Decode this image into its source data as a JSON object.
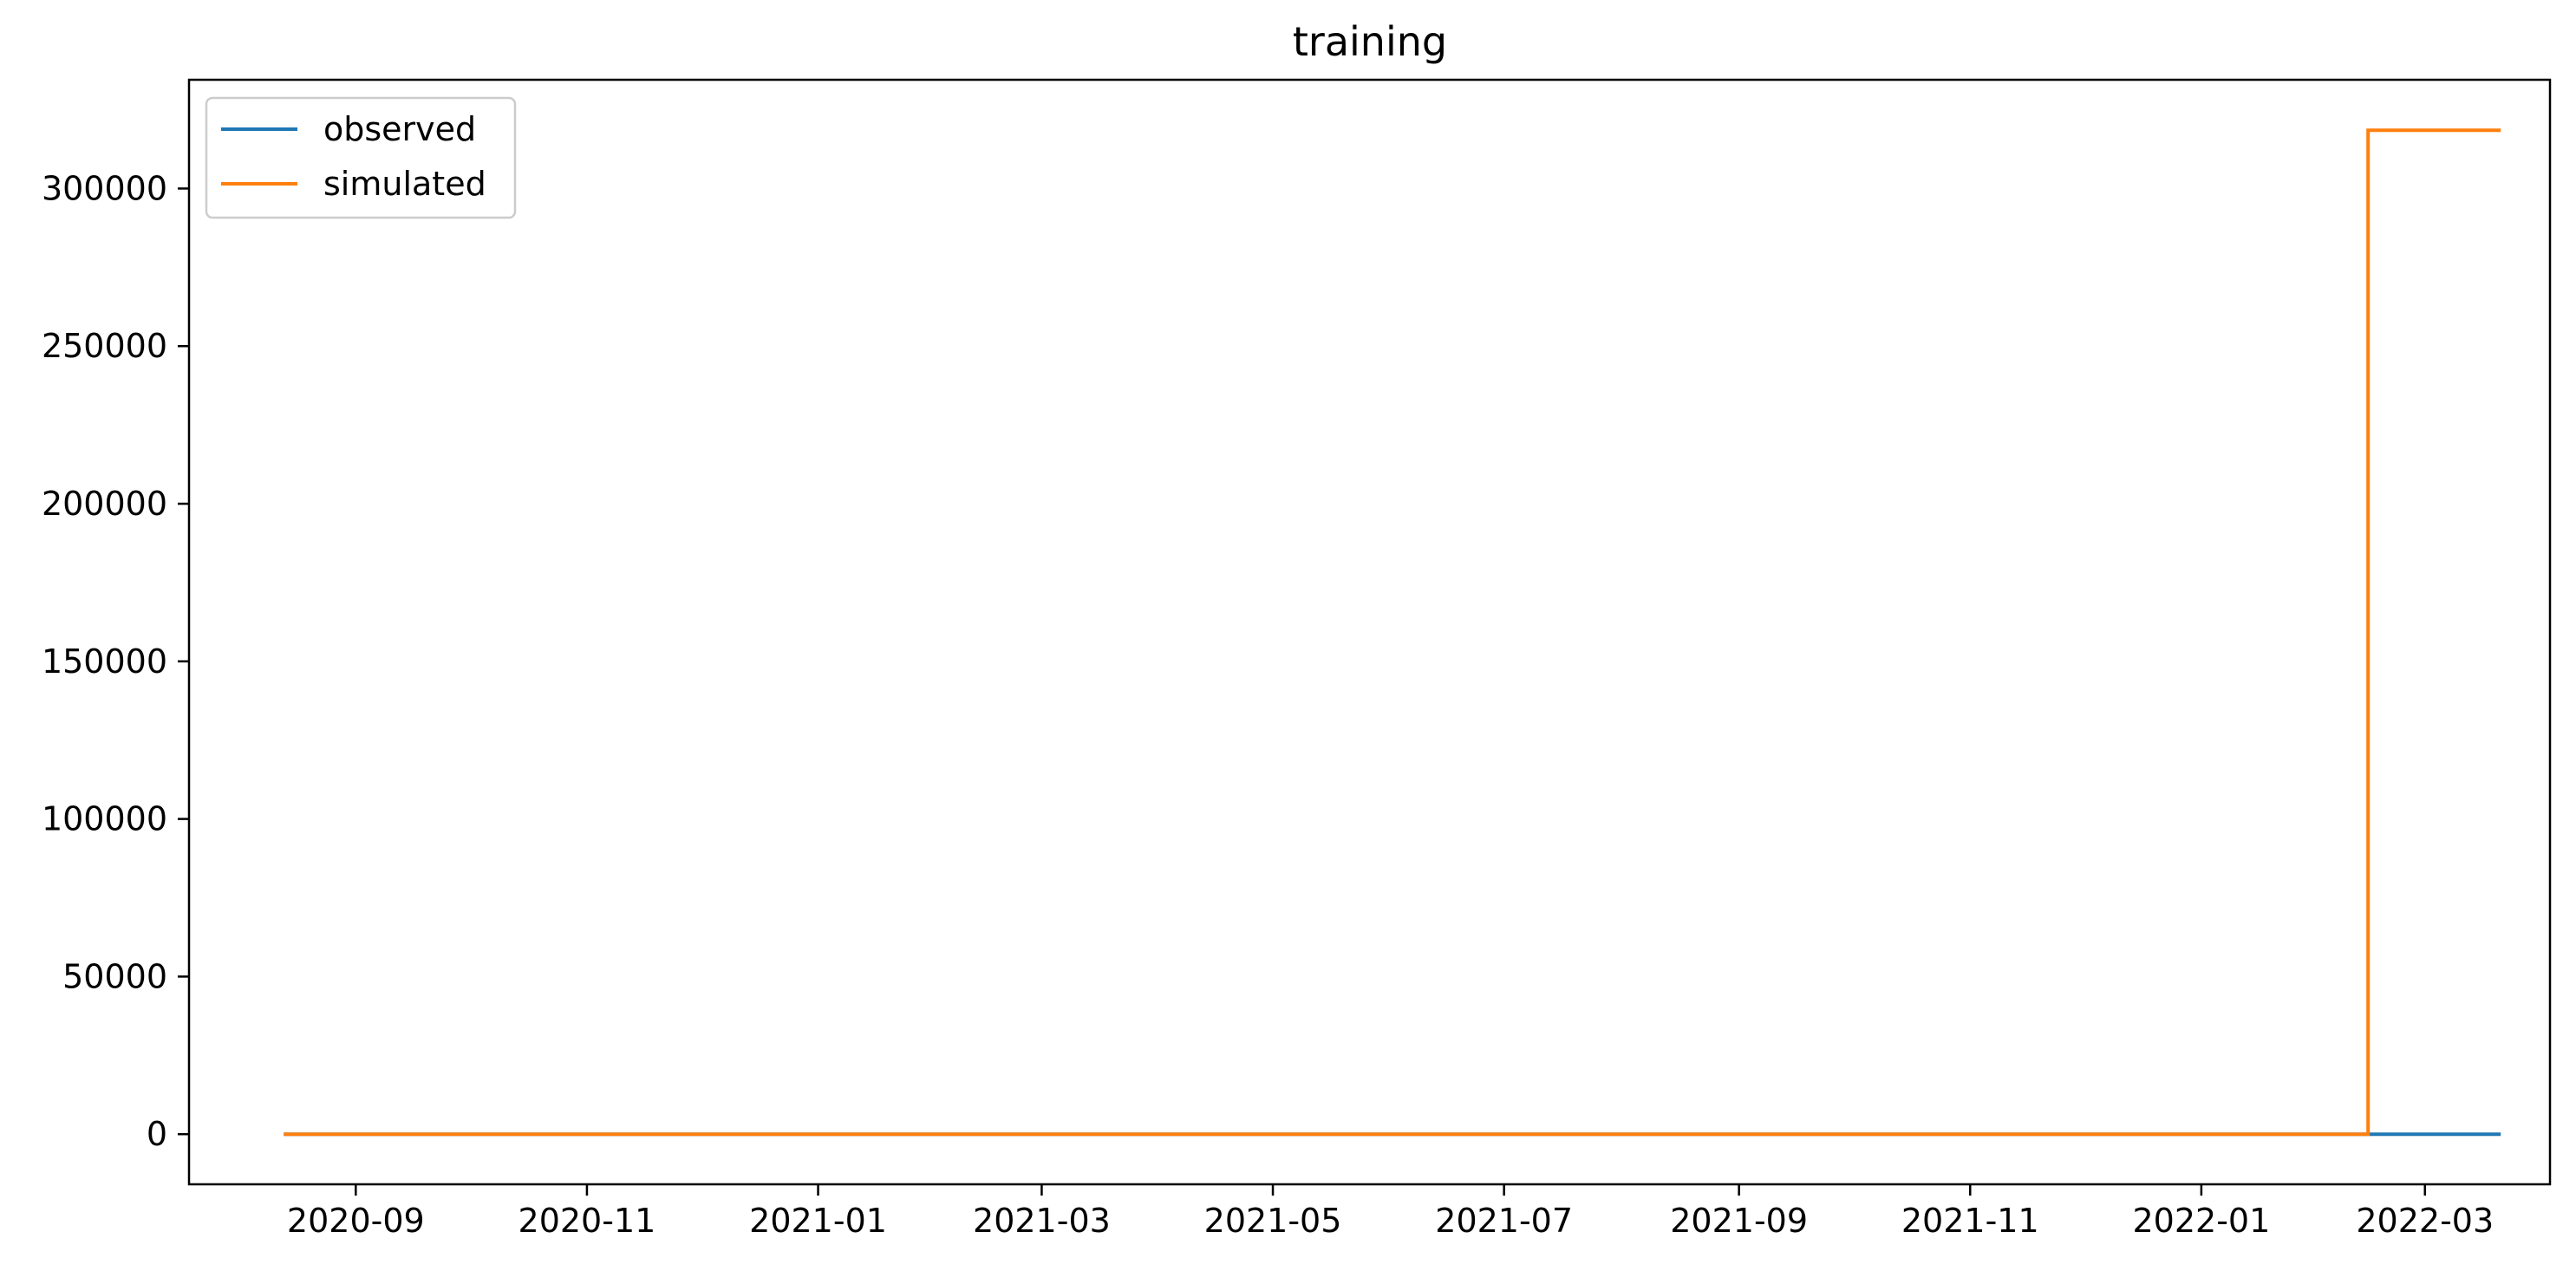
{
  "chart_data": {
    "type": "line",
    "title": "training",
    "xlabel": "",
    "ylabel": "",
    "x_type": "date",
    "xlim": [
      "2020-07-19",
      "2022-04-03"
    ],
    "ylim": [
      -15900,
      334500
    ],
    "x_ticks": [
      "2020-09",
      "2020-11",
      "2021-01",
      "2021-03",
      "2021-05",
      "2021-07",
      "2021-09",
      "2021-11",
      "2022-01",
      "2022-03"
    ],
    "y_ticks": [
      0,
      50000,
      100000,
      150000,
      200000,
      250000,
      300000
    ],
    "legend_position": "top-left",
    "grid": false,
    "series": [
      {
        "name": "observed",
        "color": "#1f77b4",
        "step": true,
        "points": [
          {
            "x": "2020-08-13",
            "y": 0
          },
          {
            "x": "2022-02-14",
            "y": 0
          },
          {
            "x": "2022-03-21",
            "y": 0
          }
        ]
      },
      {
        "name": "simulated",
        "color": "#ff7f0e",
        "step": true,
        "points": [
          {
            "x": "2020-08-13",
            "y": 0
          },
          {
            "x": "2022-02-14",
            "y": 318500
          },
          {
            "x": "2022-03-21",
            "y": 318500
          }
        ]
      }
    ]
  }
}
